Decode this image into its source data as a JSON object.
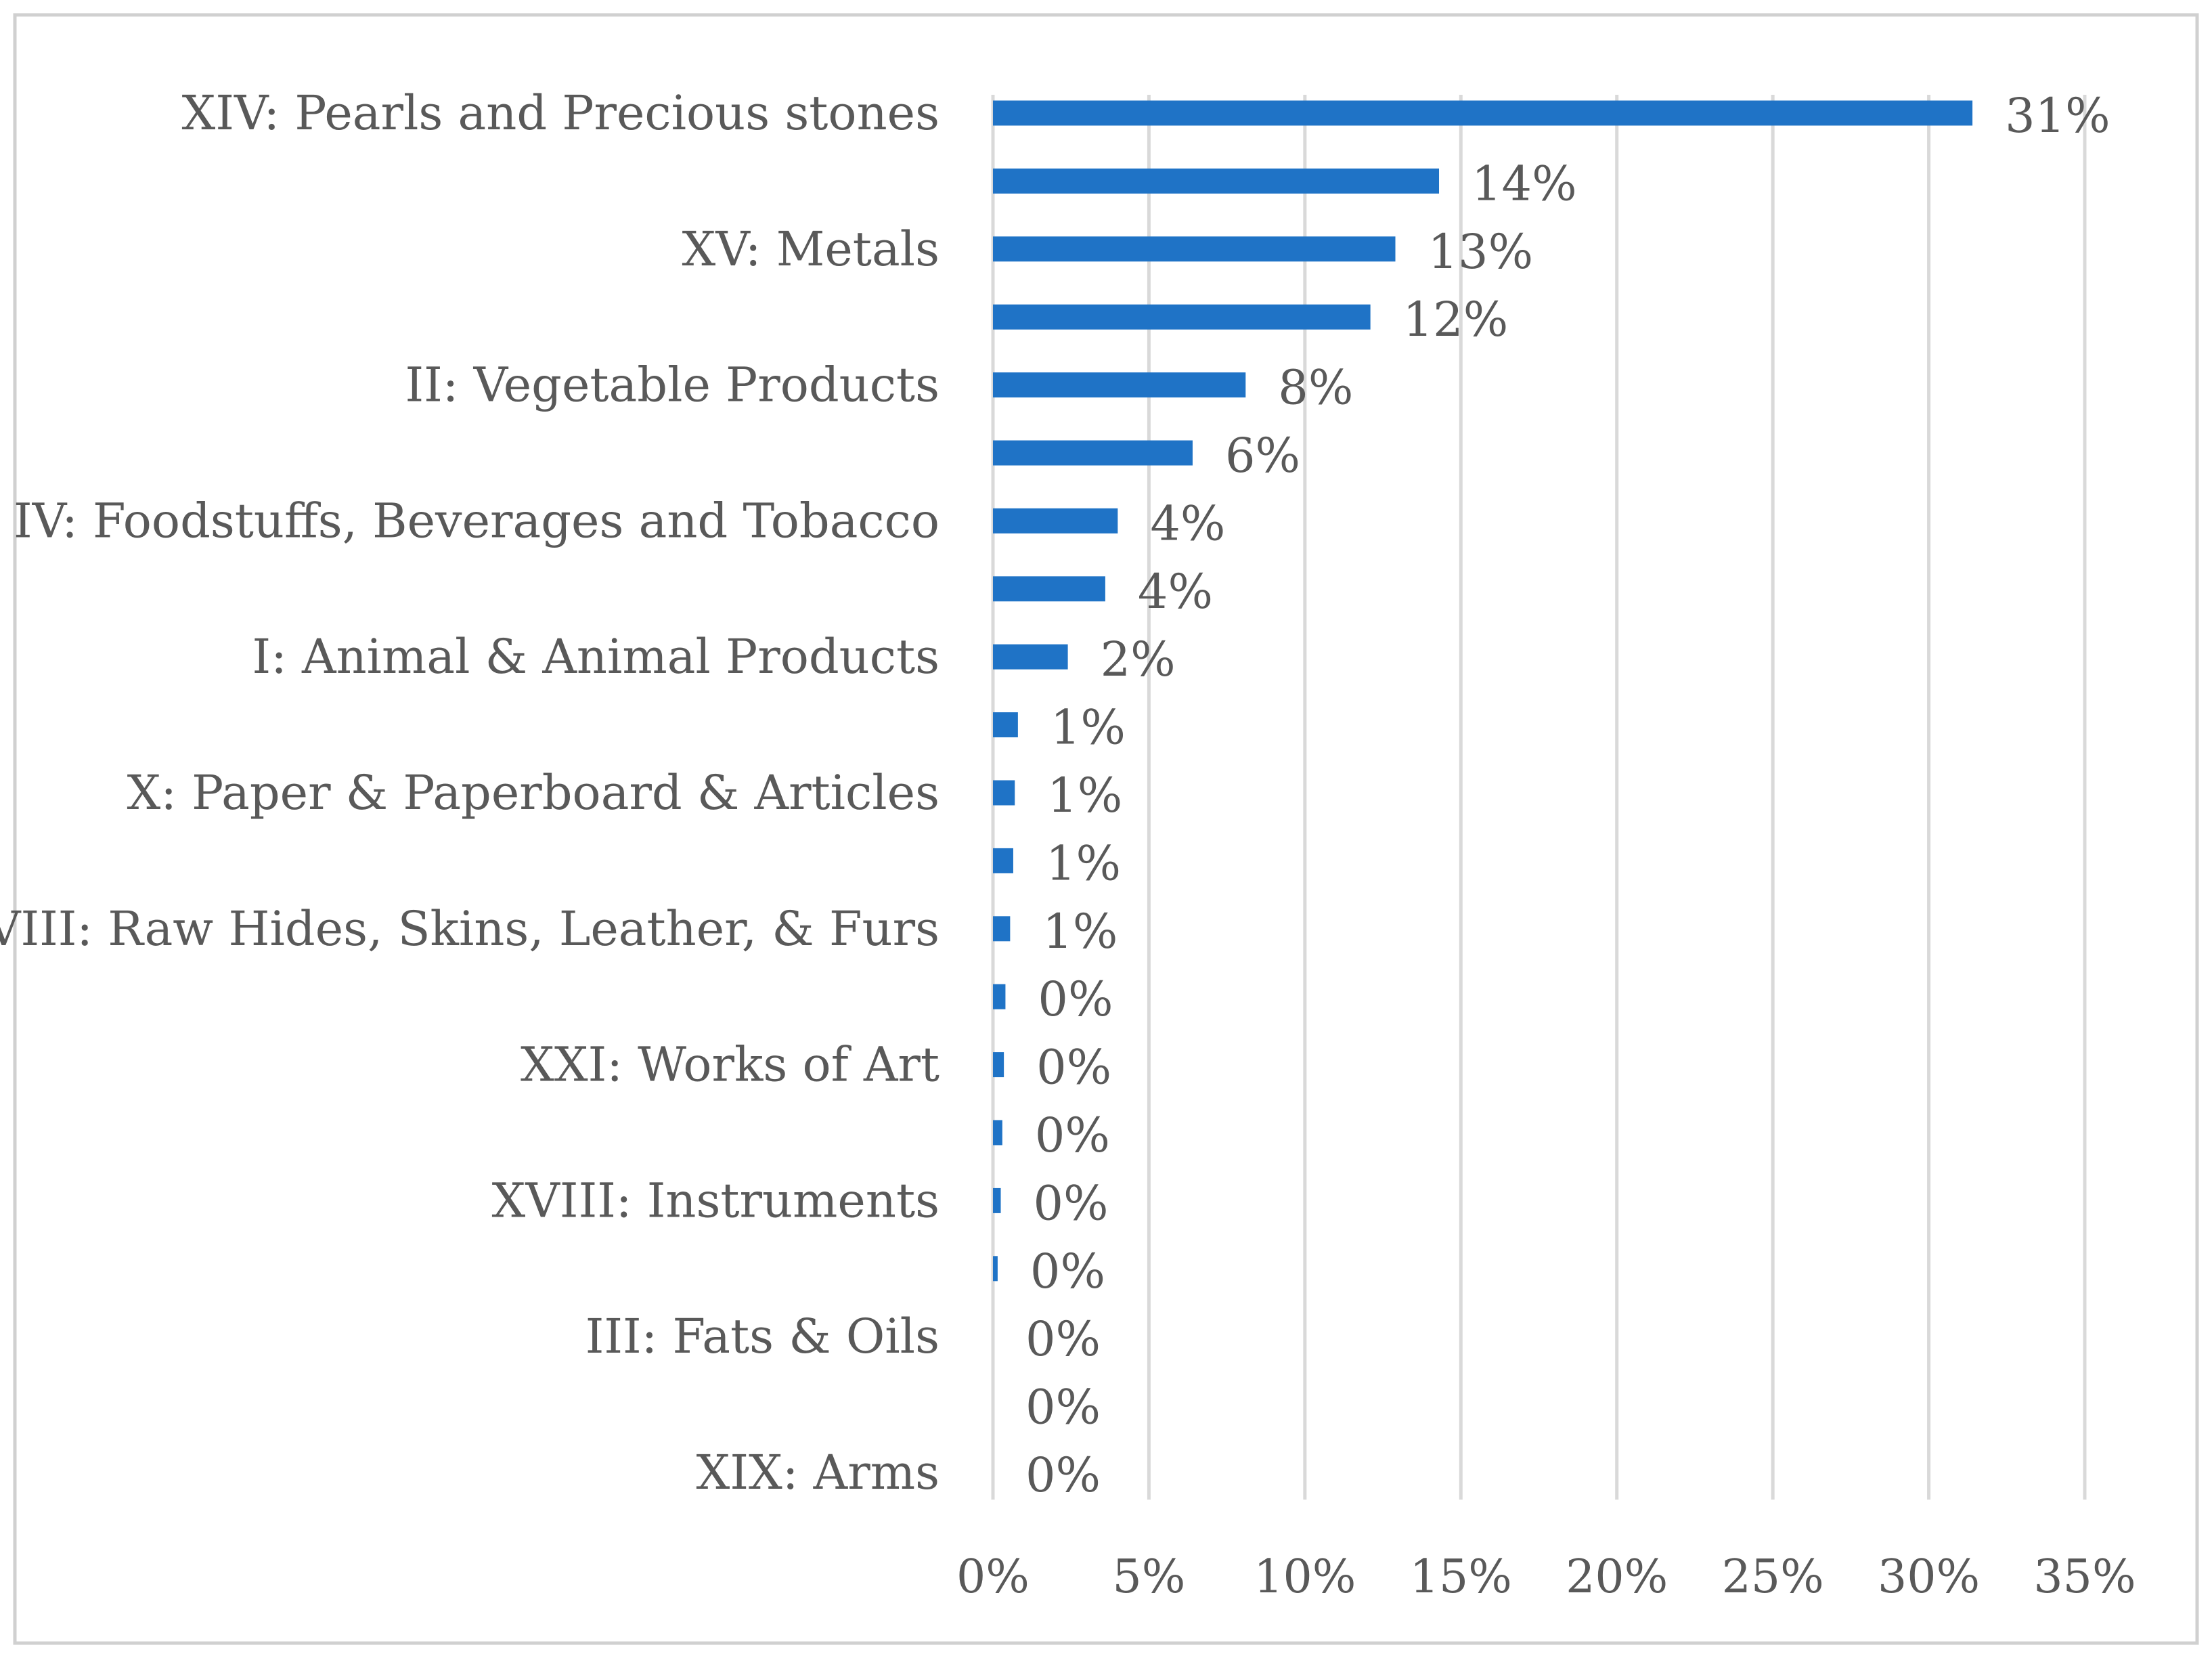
{
  "chart_data": {
    "type": "bar",
    "orientation": "horizontal",
    "title": "",
    "xlabel": "",
    "ylabel": "",
    "xlim": [
      0,
      35
    ],
    "xticks": [
      0,
      5,
      10,
      15,
      20,
      25,
      30,
      35
    ],
    "xtick_labels": [
      "0%",
      "5%",
      "10%",
      "15%",
      "20%",
      "25%",
      "30%",
      "35%"
    ],
    "grid": "vertical",
    "legend": "none",
    "colors": {
      "bar": "#1f73c6",
      "grid": "#d9d9d9",
      "text": "#595959",
      "border": "#d0d0d0"
    },
    "categories": [
      "XIV: Pearls and Precious stones",
      "",
      "XV: Metals",
      "",
      "II: Vegetable Products",
      "",
      "IV: Foodstuffs, Beverages and Tobacco",
      "",
      "I: Animal & Animal Products",
      "",
      "X: Paper & Paperboard & Articles",
      "",
      "VIII: Raw Hides, Skins, Leather, & Furs",
      "",
      "XXI: Works of Art",
      "",
      "XVIII: Instruments",
      "",
      "III: Fats & Oils",
      "",
      "XIX: Arms"
    ],
    "values": [
      31.4,
      14.3,
      12.9,
      12.1,
      8.1,
      6.4,
      4.0,
      3.6,
      2.4,
      0.8,
      0.7,
      0.65,
      0.55,
      0.4,
      0.35,
      0.3,
      0.25,
      0.15,
      0,
      0,
      0
    ],
    "data_labels": [
      "31%",
      "14%",
      "13%",
      "12%",
      "8%",
      "6%",
      "4%",
      "4%",
      "2%",
      "1%",
      "1%",
      "1%",
      "1%",
      "0%",
      "0%",
      "0%",
      "0%",
      "0%",
      "0%",
      "0%",
      "0%"
    ]
  }
}
